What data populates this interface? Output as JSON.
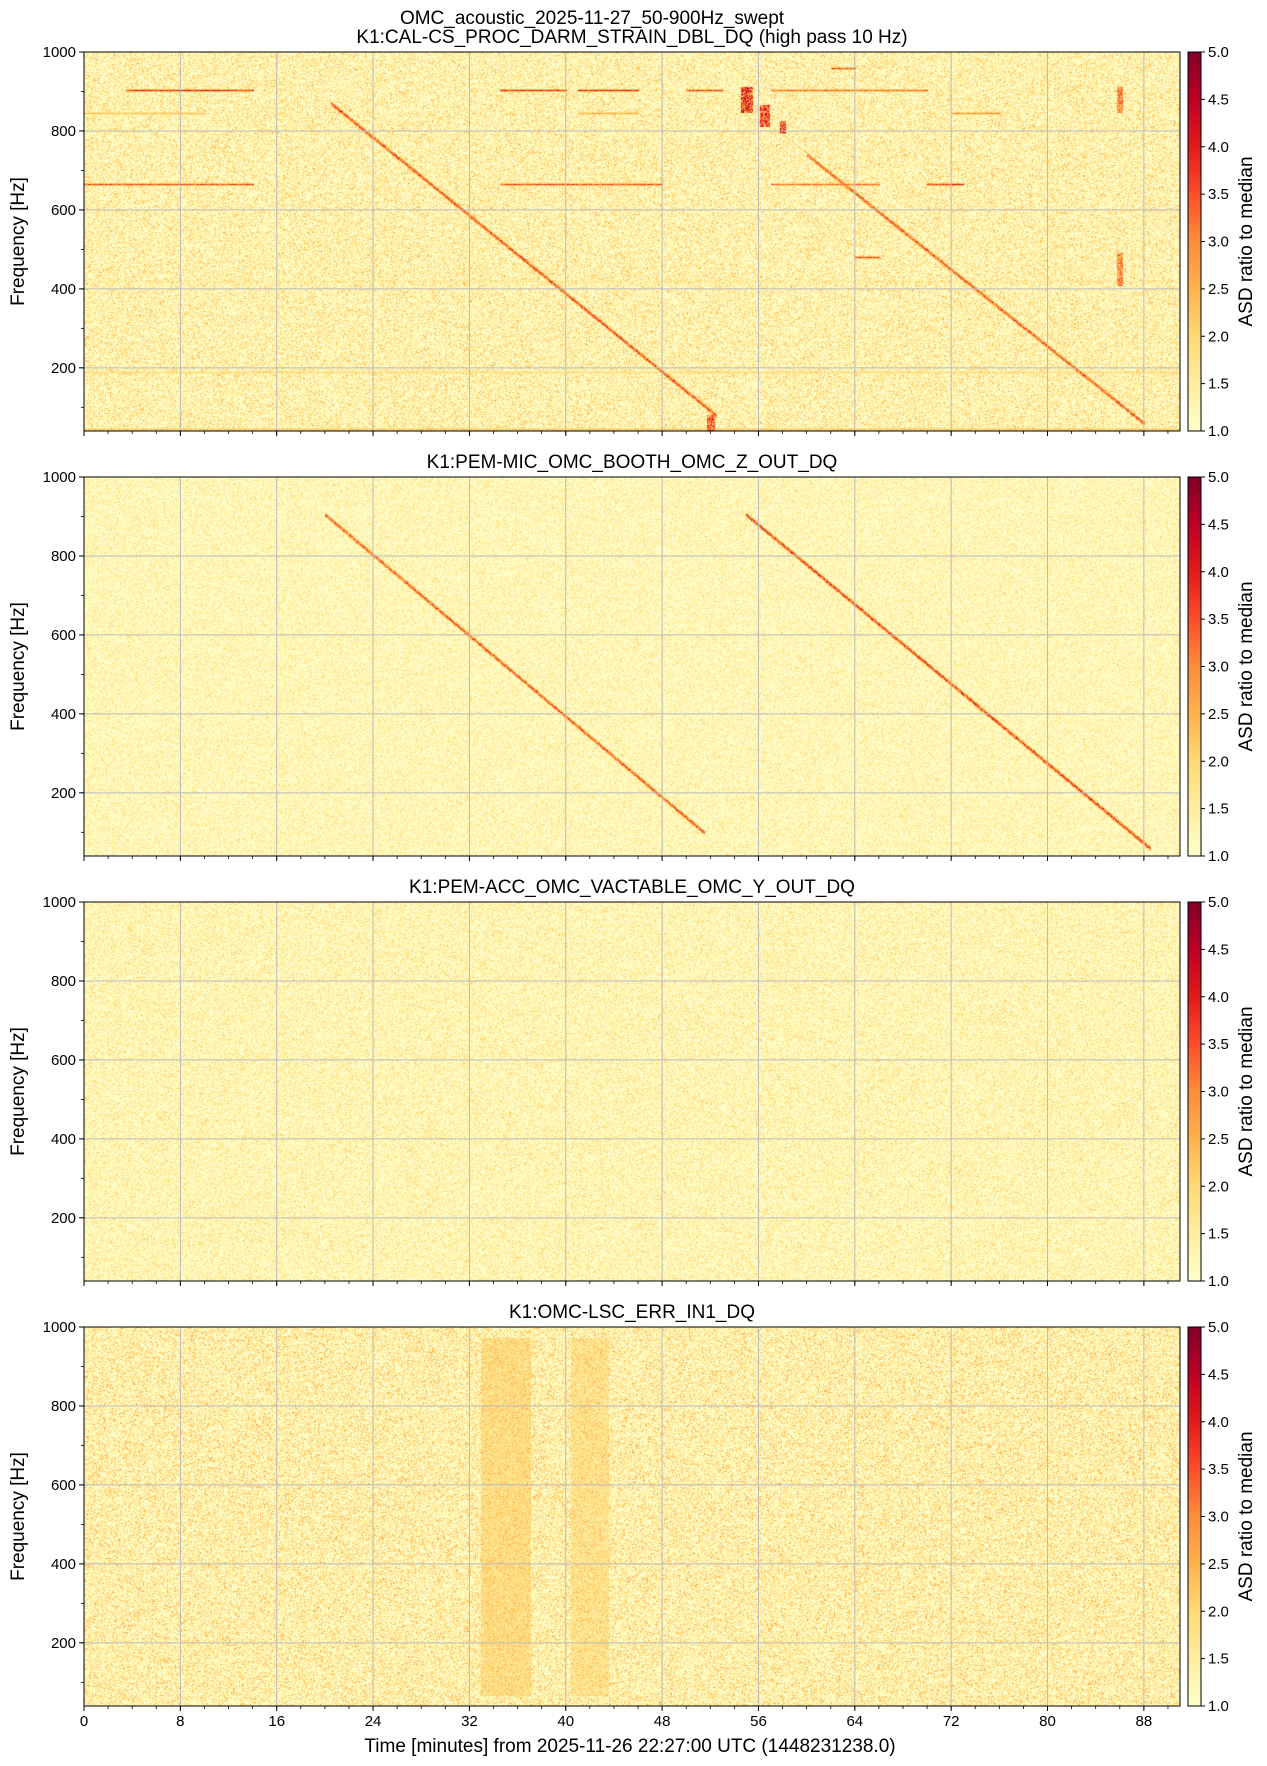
{
  "figure": {
    "suptitle": "OMC_acoustic_2025-11-27_50-900Hz_swept",
    "xlabel": "Time [minutes] from 2025-11-26 22:27:00 UTC (1448231238.0)"
  },
  "colormap": [
    "#ffffcc",
    "#ffeda0",
    "#fed976",
    "#feb24c",
    "#fd8d3c",
    "#fc4e2a",
    "#e31a1c",
    "#bd0026",
    "#800026"
  ],
  "chart_data": [
    {
      "type": "heatmap",
      "title": "K1:CAL-CS_PROC_DARM_STRAIN_DBL_DQ (high pass 10 Hz)",
      "xlabel": "",
      "ylabel": "Frequency [Hz]",
      "xlim": [
        0,
        91
      ],
      "ylim": [
        40,
        1000
      ],
      "xticks": [
        0,
        8,
        16,
        24,
        32,
        40,
        48,
        56,
        64,
        72,
        80,
        88
      ],
      "yticks": [
        200,
        400,
        600,
        800,
        1000
      ],
      "grid": true,
      "colorbar": {
        "label": "ASD ratio to median",
        "range": [
          1.0,
          5.0
        ],
        "ticks": [
          "1.0",
          "1.5",
          "2.0",
          "2.5",
          "3.0",
          "3.5",
          "4.0",
          "4.5",
          "5.0"
        ]
      },
      "noise_level": 0.18,
      "sweeps": [
        {
          "t_start": 20.5,
          "f_start": 870,
          "t_end": 52.5,
          "f_end": 80,
          "intensity": 0.9
        },
        {
          "t_start": 60.0,
          "f_start": 740,
          "t_end": 88.0,
          "f_end": 60,
          "intensity": 0.85
        }
      ],
      "lines": [
        {
          "f": 905,
          "t_start": 3.5,
          "t_end": 14,
          "intensity": 0.9
        },
        {
          "f": 905,
          "t_start": 34.5,
          "t_end": 40,
          "intensity": 0.9
        },
        {
          "f": 905,
          "t_start": 41,
          "t_end": 46,
          "intensity": 0.9
        },
        {
          "f": 905,
          "t_start": 50,
          "t_end": 53,
          "intensity": 0.8
        },
        {
          "f": 905,
          "t_start": 57,
          "t_end": 70,
          "intensity": 0.7
        },
        {
          "f": 665,
          "t_start": 0,
          "t_end": 14,
          "intensity": 0.8
        },
        {
          "f": 665,
          "t_start": 34.5,
          "t_end": 48,
          "intensity": 0.8
        },
        {
          "f": 665,
          "t_start": 57,
          "t_end": 66,
          "intensity": 0.7
        },
        {
          "f": 665,
          "t_start": 70,
          "t_end": 73,
          "intensity": 0.9
        },
        {
          "f": 845,
          "t_start": 0,
          "t_end": 10,
          "intensity": 0.4
        },
        {
          "f": 845,
          "t_start": 41,
          "t_end": 46,
          "intensity": 0.5
        },
        {
          "f": 845,
          "t_start": 72,
          "t_end": 76,
          "intensity": 0.6
        },
        {
          "f": 960,
          "t_start": 62,
          "t_end": 64,
          "intensity": 0.8
        },
        {
          "f": 480,
          "t_start": 64,
          "t_end": 66,
          "intensity": 0.8
        },
        {
          "f": 190,
          "t_start": 0,
          "t_end": 91,
          "intensity": 0.25
        },
        {
          "f": 45,
          "t_start": 0,
          "t_end": 91,
          "intensity": 0.4
        },
        {
          "f": 420,
          "t_start": 0,
          "t_end": 91,
          "intensity": 0.15
        }
      ],
      "bursts": [
        {
          "t": 55,
          "f": 880,
          "dt": 0.8,
          "df": 60,
          "intensity": 0.95
        },
        {
          "t": 56.5,
          "f": 840,
          "dt": 0.6,
          "df": 50,
          "intensity": 0.9
        },
        {
          "t": 58,
          "f": 810,
          "dt": 0.3,
          "df": 30,
          "intensity": 0.9
        },
        {
          "t": 86,
          "f": 880,
          "dt": 0.3,
          "df": 60,
          "intensity": 0.7
        },
        {
          "t": 86,
          "f": 450,
          "dt": 0.3,
          "df": 80,
          "intensity": 0.7
        },
        {
          "t": 52,
          "f": 60,
          "dt": 0.5,
          "df": 40,
          "intensity": 0.8
        }
      ]
    },
    {
      "type": "heatmap",
      "title": "K1:PEM-MIC_OMC_BOOTH_OMC_Z_OUT_DQ",
      "xlabel": "",
      "ylabel": "Frequency [Hz]",
      "xlim": [
        0,
        91
      ],
      "ylim": [
        40,
        1000
      ],
      "xticks": [
        0,
        8,
        16,
        24,
        32,
        40,
        48,
        56,
        64,
        72,
        80,
        88
      ],
      "yticks": [
        200,
        400,
        600,
        800,
        1000
      ],
      "grid": true,
      "colorbar": {
        "label": "ASD ratio to median",
        "range": [
          1.0,
          5.0
        ],
        "ticks": [
          "1.0",
          "1.5",
          "2.0",
          "2.5",
          "3.0",
          "3.5",
          "4.0",
          "4.5",
          "5.0"
        ]
      },
      "noise_level": 0.12,
      "sweeps": [
        {
          "t_start": 20.0,
          "f_start": 905,
          "t_end": 51.5,
          "f_end": 100,
          "intensity": 0.85
        },
        {
          "t_start": 55.0,
          "f_start": 905,
          "t_end": 88.5,
          "f_end": 60,
          "intensity": 0.95
        }
      ],
      "lines": [],
      "bursts": []
    },
    {
      "type": "heatmap",
      "title": "K1:PEM-ACC_OMC_VACTABLE_OMC_Y_OUT_DQ",
      "xlabel": "",
      "ylabel": "Frequency [Hz]",
      "xlim": [
        0,
        91
      ],
      "ylim": [
        40,
        1000
      ],
      "xticks": [
        0,
        8,
        16,
        24,
        32,
        40,
        48,
        56,
        64,
        72,
        80,
        88
      ],
      "yticks": [
        200,
        400,
        600,
        800,
        1000
      ],
      "grid": true,
      "colorbar": {
        "label": "ASD ratio to median",
        "range": [
          1.0,
          5.0
        ],
        "ticks": [
          "1.0",
          "1.5",
          "2.0",
          "2.5",
          "3.0",
          "3.5",
          "4.0",
          "4.5",
          "5.0"
        ]
      },
      "noise_level": 0.14,
      "sweeps": [],
      "lines": [],
      "bursts": []
    },
    {
      "type": "heatmap",
      "title": "K1:OMC-LSC_ERR_IN1_DQ",
      "xlabel": "Time [minutes] from 2025-11-26 22:27:00 UTC (1448231238.0)",
      "ylabel": "Frequency [Hz]",
      "xlim": [
        0,
        91
      ],
      "ylim": [
        40,
        1000
      ],
      "xticks": [
        0,
        8,
        16,
        24,
        32,
        40,
        48,
        56,
        64,
        72,
        80,
        88
      ],
      "yticks": [
        200,
        400,
        600,
        800,
        1000
      ],
      "grid": true,
      "colorbar": {
        "label": "ASD ratio to median",
        "range": [
          1.0,
          5.0
        ],
        "ticks": [
          "1.0",
          "1.5",
          "2.0",
          "2.5",
          "3.0",
          "3.5",
          "4.0",
          "4.5",
          "5.0"
        ]
      },
      "noise_level": 0.2,
      "sweeps": [],
      "lines": [],
      "bursts": [
        {
          "t": 35,
          "f": 520,
          "dt": 4,
          "df": 900,
          "intensity": 0.3
        },
        {
          "t": 42,
          "f": 520,
          "dt": 3,
          "df": 900,
          "intensity": 0.25
        }
      ]
    }
  ]
}
